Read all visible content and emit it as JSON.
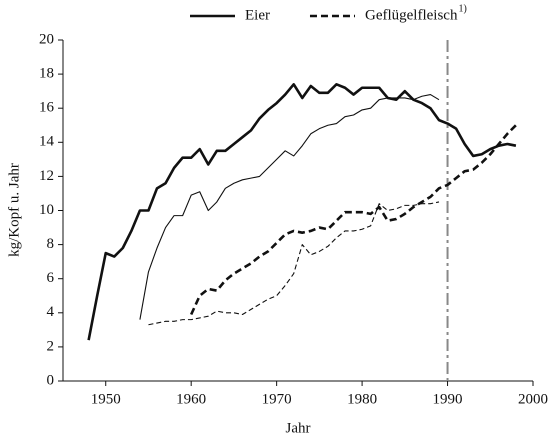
{
  "chart_data": {
    "type": "line",
    "xlabel": "Jahr",
    "ylabel": "kg/Kopf u. Jahr",
    "x": [
      1948,
      1949,
      1950,
      1951,
      1952,
      1953,
      1954,
      1955,
      1956,
      1957,
      1958,
      1959,
      1960,
      1961,
      1962,
      1963,
      1964,
      1965,
      1966,
      1967,
      1968,
      1969,
      1970,
      1971,
      1972,
      1973,
      1974,
      1975,
      1976,
      1977,
      1978,
      1979,
      1980,
      1981,
      1982,
      1983,
      1984,
      1985,
      1986,
      1987,
      1988,
      1989,
      1990,
      1991,
      1992,
      1993,
      1994,
      1995,
      1996,
      1997,
      1998
    ],
    "series": [
      {
        "name": "Eier",
        "color": "#111111",
        "thick": true,
        "dashed": false,
        "values": [
          2.4,
          5.0,
          7.5,
          7.3,
          7.8,
          8.8,
          10.0,
          10.0,
          11.3,
          11.6,
          12.5,
          13.1,
          13.1,
          13.6,
          12.7,
          13.5,
          13.5,
          13.9,
          14.3,
          14.7,
          15.4,
          15.9,
          16.3,
          16.8,
          17.4,
          16.6,
          17.3,
          16.9,
          16.9,
          17.4,
          17.2,
          16.8,
          17.2,
          17.2,
          17.2,
          16.6,
          16.5,
          17.0,
          16.5,
          16.3,
          16.0,
          15.3,
          15.1,
          14.8,
          13.9,
          13.2,
          13.3,
          13.6,
          13.8,
          13.9,
          13.8
        ]
      },
      {
        "color": "#111111",
        "thick": false,
        "dashed": false,
        "values": [
          null,
          null,
          null,
          null,
          null,
          null,
          3.6,
          6.4,
          7.8,
          9.0,
          9.7,
          9.7,
          10.9,
          11.1,
          10.0,
          10.5,
          11.3,
          11.6,
          11.8,
          11.9,
          12.0,
          12.5,
          13.0,
          13.5,
          13.2,
          13.8,
          14.5,
          14.8,
          15.0,
          15.1,
          15.5,
          15.6,
          15.9,
          16.0,
          16.5,
          16.6,
          16.6,
          16.6,
          16.5,
          16.7,
          16.8,
          16.5,
          null,
          null,
          null,
          null,
          null,
          null,
          null,
          null,
          null
        ]
      },
      {
        "name": "Geflügelfleisch",
        "note": "1)",
        "color": "#111111",
        "thick": true,
        "dashed": true,
        "values": [
          null,
          null,
          null,
          null,
          null,
          null,
          null,
          null,
          null,
          null,
          null,
          null,
          3.9,
          5.0,
          5.4,
          5.3,
          5.9,
          6.3,
          6.6,
          6.9,
          7.3,
          7.6,
          8.1,
          8.6,
          8.8,
          8.7,
          8.8,
          9.0,
          8.9,
          9.4,
          9.9,
          9.9,
          9.9,
          9.8,
          10.2,
          9.4,
          9.5,
          9.8,
          10.2,
          10.5,
          10.8,
          11.3,
          11.5,
          11.9,
          12.3,
          12.4,
          12.8,
          13.3,
          13.9,
          14.5,
          15.0
        ]
      },
      {
        "color": "#111111",
        "thick": false,
        "dashed": true,
        "values": [
          null,
          null,
          null,
          null,
          null,
          null,
          null,
          3.3,
          3.4,
          3.5,
          3.5,
          3.6,
          3.6,
          3.7,
          3.8,
          4.1,
          4.0,
          4.0,
          3.9,
          4.2,
          4.5,
          4.8,
          5.0,
          5.6,
          6.3,
          8.0,
          7.4,
          7.6,
          7.9,
          8.4,
          8.8,
          8.8,
          8.9,
          9.1,
          10.4,
          10.0,
          10.1,
          10.3,
          10.3,
          10.4,
          10.4,
          10.5,
          null,
          null,
          null,
          null,
          null,
          null,
          null,
          null,
          null
        ]
      }
    ],
    "reference_x": 1990,
    "reference_color": "#888888",
    "xlim": [
      1945,
      2000
    ],
    "xticks": [
      1950,
      1960,
      1970,
      1980,
      1990,
      2000
    ],
    "ylim": [
      0,
      20
    ],
    "yticks": [
      0,
      2,
      4,
      6,
      8,
      10,
      12,
      14,
      16,
      18,
      20
    ],
    "legend": "top"
  }
}
